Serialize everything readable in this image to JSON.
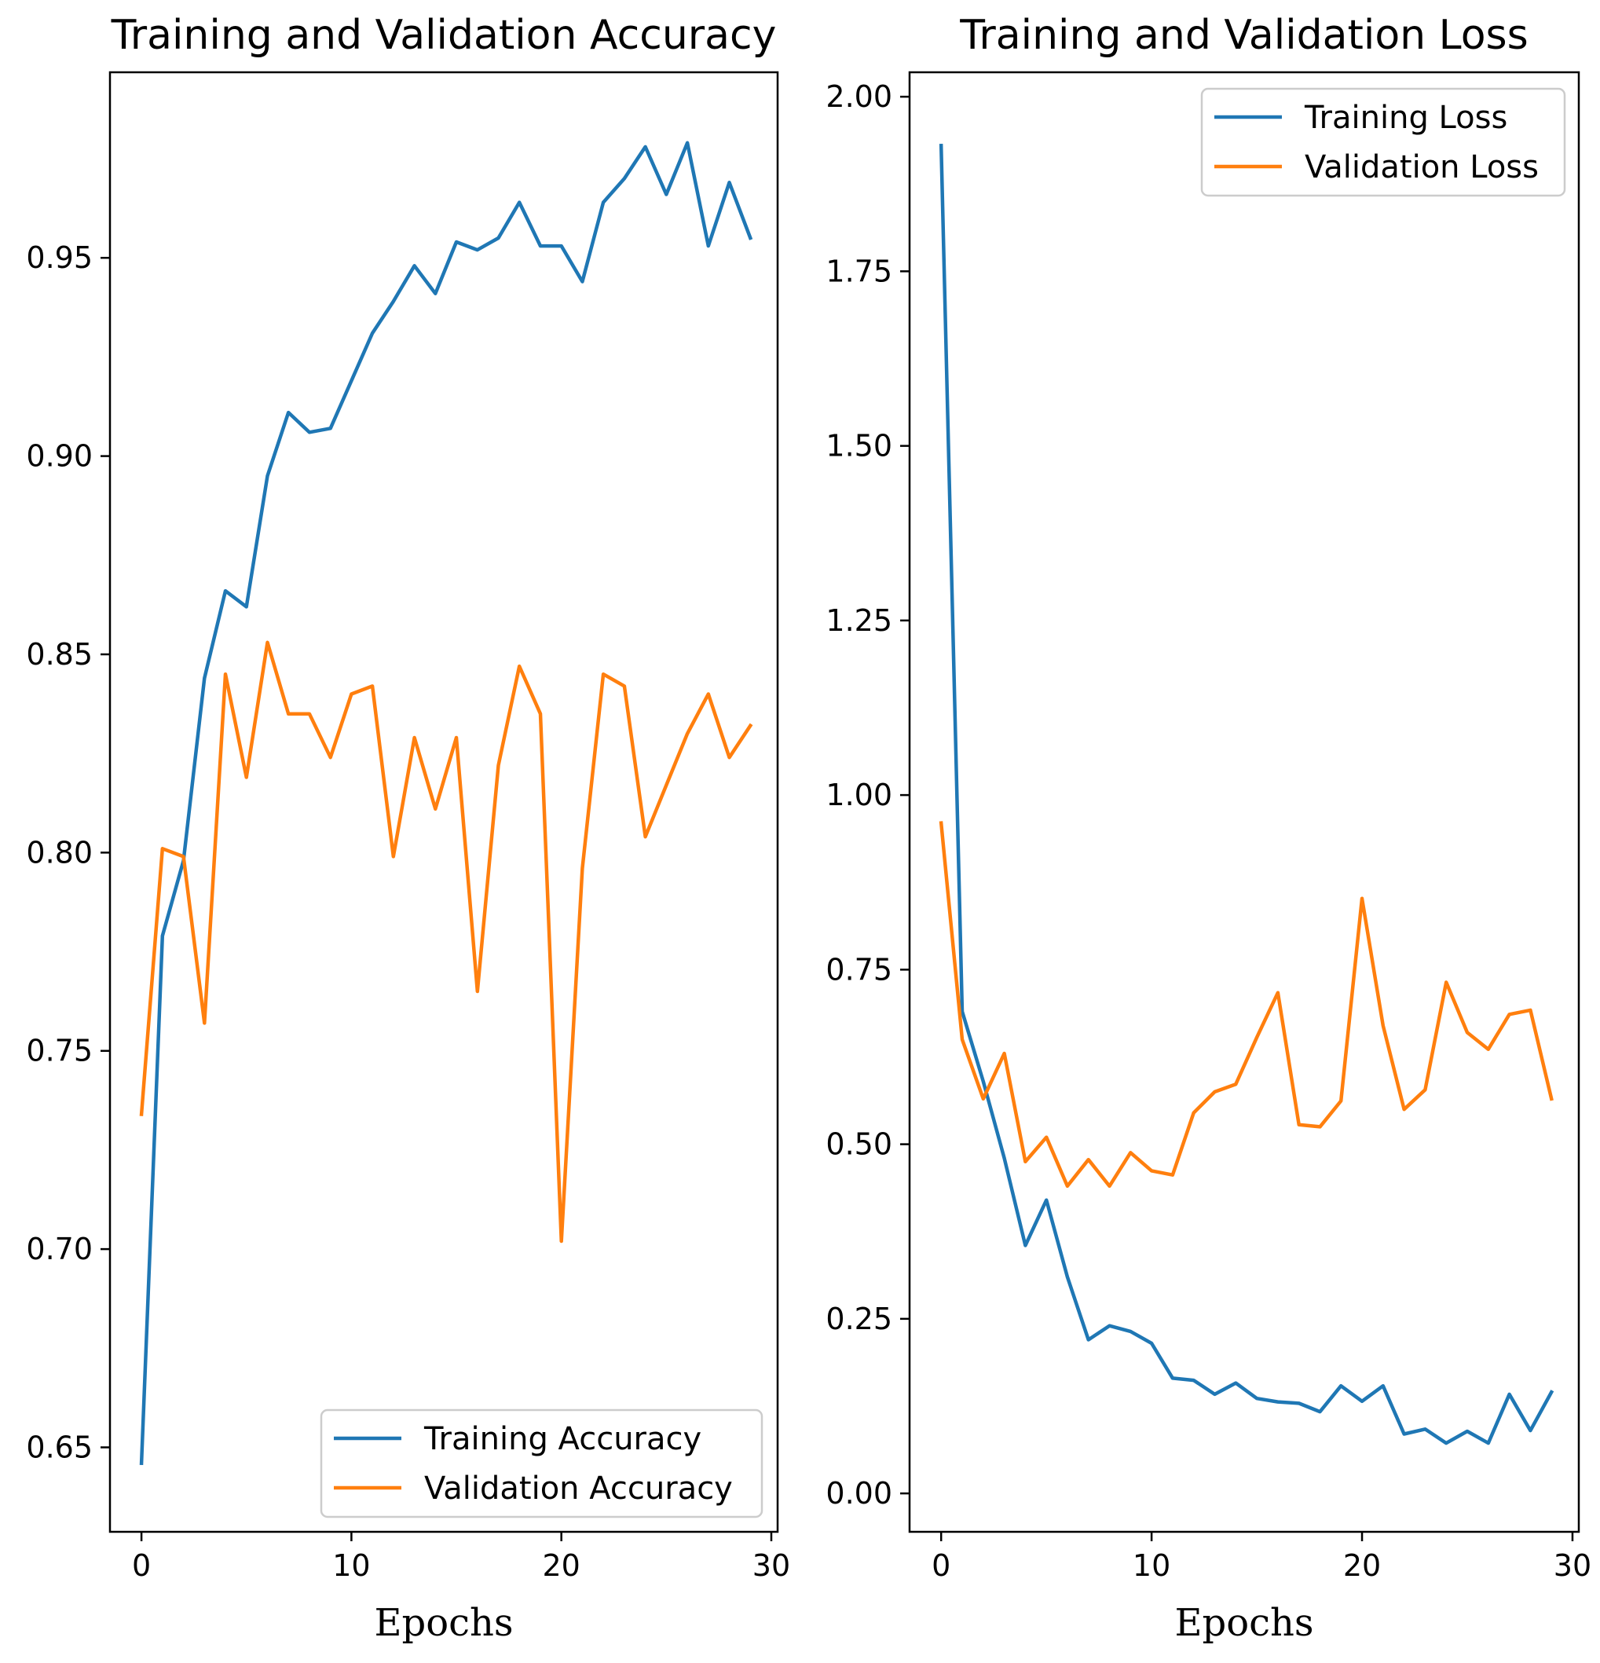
{
  "chart_data": [
    {
      "type": "line",
      "title": "Training and Validation Accuracy",
      "xlabel": "Epochs",
      "ylabel": "",
      "xlim": [
        -1.5,
        30.3
      ],
      "ylim": [
        0.6287,
        0.9968
      ],
      "xticks": [
        0,
        10,
        20,
        30
      ],
      "xtick_labels": [
        "0",
        "10",
        "20",
        "30"
      ],
      "yticks": [
        0.65,
        0.7,
        0.75,
        0.8,
        0.85,
        0.9,
        0.95
      ],
      "ytick_labels": [
        "0.65",
        "0.70",
        "0.75",
        "0.80",
        "0.85",
        "0.90",
        "0.95"
      ],
      "grid": false,
      "legend_position": "lower right",
      "x": [
        0,
        1,
        2,
        3,
        4,
        5,
        6,
        7,
        8,
        9,
        10,
        11,
        12,
        13,
        14,
        15,
        16,
        17,
        18,
        19,
        20,
        21,
        22,
        23,
        24,
        25,
        26,
        27,
        28,
        29
      ],
      "series": [
        {
          "name": "Training Accuracy",
          "color": "#1f77b4",
          "values": [
            0.646,
            0.779,
            0.798,
            0.844,
            0.866,
            0.862,
            0.895,
            0.911,
            0.906,
            0.907,
            0.919,
            0.931,
            0.939,
            0.948,
            0.941,
            0.954,
            0.952,
            0.955,
            0.964,
            0.953,
            0.953,
            0.944,
            0.964,
            0.97,
            0.978,
            0.966,
            0.979,
            0.953,
            0.969,
            0.955
          ]
        },
        {
          "name": "Validation Accuracy",
          "color": "#ff7f0e",
          "values": [
            0.734,
            0.801,
            0.799,
            0.757,
            0.845,
            0.819,
            0.853,
            0.835,
            0.835,
            0.824,
            0.84,
            0.842,
            0.799,
            0.829,
            0.811,
            0.829,
            0.765,
            0.822,
            0.847,
            0.835,
            0.702,
            0.796,
            0.845,
            0.842,
            0.804,
            0.817,
            0.83,
            0.84,
            0.824,
            0.832
          ]
        }
      ]
    },
    {
      "type": "line",
      "title": "Training and Validation Loss",
      "xlabel": "Epochs",
      "ylabel": "",
      "xlim": [
        -1.5,
        30.3
      ],
      "ylim": [
        -0.055,
        2.035
      ],
      "xticks": [
        0,
        10,
        20,
        30
      ],
      "xtick_labels": [
        "0",
        "10",
        "20",
        "30"
      ],
      "yticks": [
        0.0,
        0.25,
        0.5,
        0.75,
        1.0,
        1.25,
        1.5,
        1.75,
        2.0
      ],
      "ytick_labels": [
        "0.00",
        "0.25",
        "0.50",
        "0.75",
        "1.00",
        "1.25",
        "1.50",
        "1.75",
        "2.00"
      ],
      "grid": false,
      "legend_position": "upper right",
      "x": [
        0,
        1,
        2,
        3,
        4,
        5,
        6,
        7,
        8,
        9,
        10,
        11,
        12,
        13,
        14,
        15,
        16,
        17,
        18,
        19,
        20,
        21,
        22,
        23,
        24,
        25,
        26,
        27,
        28,
        29
      ],
      "series": [
        {
          "name": "Training Loss",
          "color": "#1f77b4",
          "values": [
            1.93,
            0.69,
            0.59,
            0.48,
            0.355,
            0.42,
            0.31,
            0.22,
            0.24,
            0.232,
            0.215,
            0.165,
            0.162,
            0.142,
            0.158,
            0.136,
            0.131,
            0.129,
            0.117,
            0.154,
            0.132,
            0.154,
            0.085,
            0.092,
            0.072,
            0.089,
            0.072,
            0.142,
            0.09,
            0.145
          ]
        },
        {
          "name": "Validation Loss",
          "color": "#ff7f0e",
          "values": [
            0.96,
            0.65,
            0.565,
            0.63,
            0.475,
            0.51,
            0.44,
            0.478,
            0.44,
            0.488,
            0.462,
            0.456,
            0.545,
            0.575,
            0.586,
            0.653,
            0.717,
            0.528,
            0.525,
            0.562,
            0.852,
            0.67,
            0.55,
            0.578,
            0.732,
            0.66,
            0.636,
            0.686,
            0.692,
            0.565
          ]
        }
      ]
    }
  ]
}
